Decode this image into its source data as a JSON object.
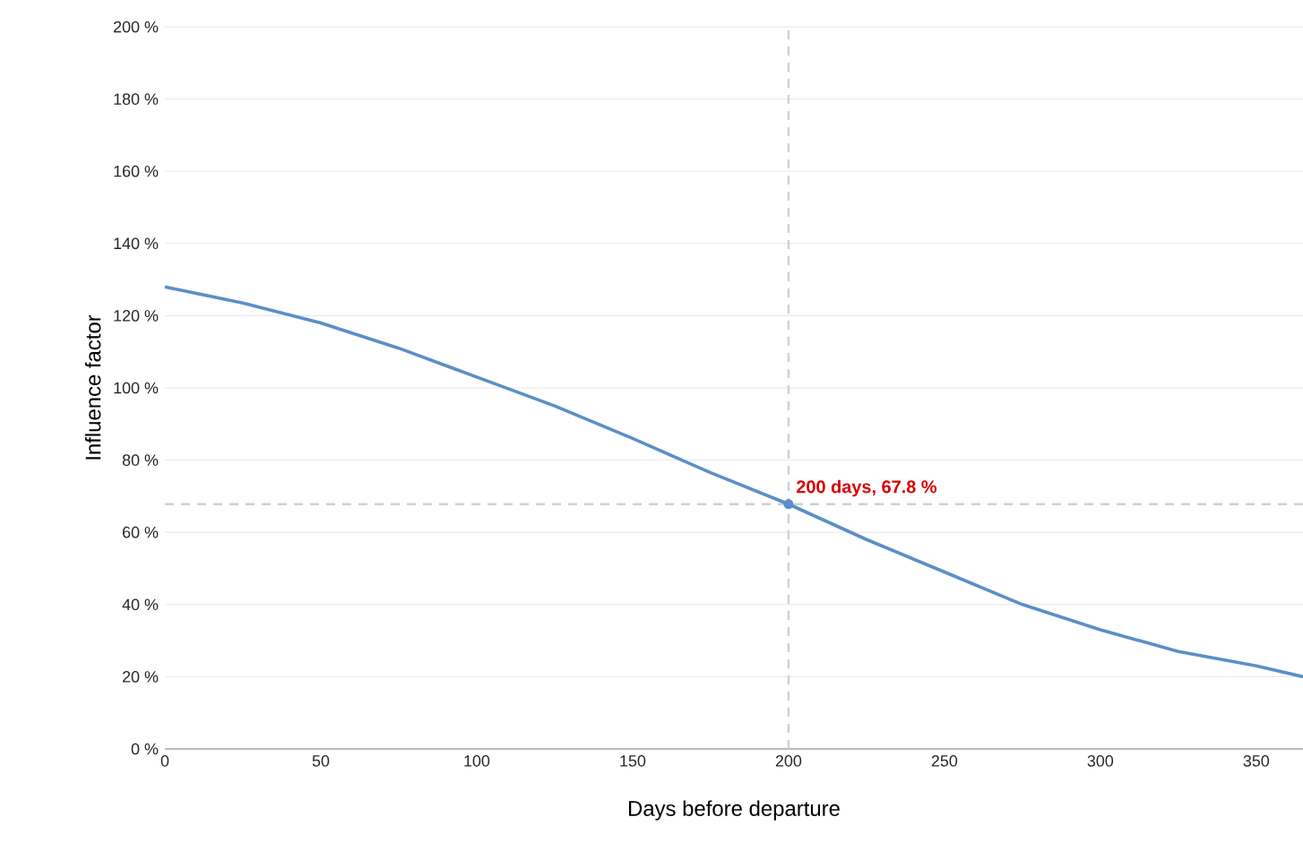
{
  "chart_data": {
    "type": "line",
    "xlabel": "Days before departure",
    "ylabel": "Influence factor",
    "series": [
      {
        "color": "#5b8fc7",
        "x": [
          0,
          25,
          50,
          75,
          100,
          125,
          150,
          175,
          200,
          225,
          250,
          275,
          300,
          325,
          350,
          365
        ],
        "values": [
          128,
          123.5,
          118,
          111,
          103,
          95,
          86,
          76.5,
          67.8,
          58,
          49,
          40,
          33,
          27,
          23,
          20
        ]
      },
      {
        "type": "scatter",
        "color": "#5b8fc7",
        "x": [
          200
        ],
        "values": [
          67.8
        ]
      }
    ],
    "xlim": [
      0,
      365
    ],
    "xticks": [
      0,
      50,
      100,
      150,
      200,
      250,
      300,
      350
    ],
    "ylim": [
      0,
      200
    ],
    "yticks": [
      {
        "value": 0,
        "label": "0 %"
      },
      {
        "value": 20,
        "label": "20 %"
      },
      {
        "value": 40,
        "label": "40 %"
      },
      {
        "value": 60,
        "label": "60 %"
      },
      {
        "value": 80,
        "label": "80 %"
      },
      {
        "value": 100,
        "label": "100 %"
      },
      {
        "value": 120,
        "label": "120 %"
      },
      {
        "value": 140,
        "label": "140 %"
      },
      {
        "value": 160,
        "label": "160 %"
      },
      {
        "value": 180,
        "label": "180 %"
      },
      {
        "value": 200,
        "label": "200 %"
      }
    ],
    "grid": "y",
    "line_style": "solid",
    "ref_lines": [
      {
        "axis": "x",
        "value": 200,
        "color": "#d0d0d0",
        "line_style": "dashed"
      },
      {
        "axis": "y",
        "value": 67.8,
        "color": "#d0d0d0",
        "line_style": "dashed"
      }
    ],
    "annotations": [
      {
        "text": "200 days, 67.8 %",
        "x": 200,
        "y": 67.8
      }
    ]
  }
}
